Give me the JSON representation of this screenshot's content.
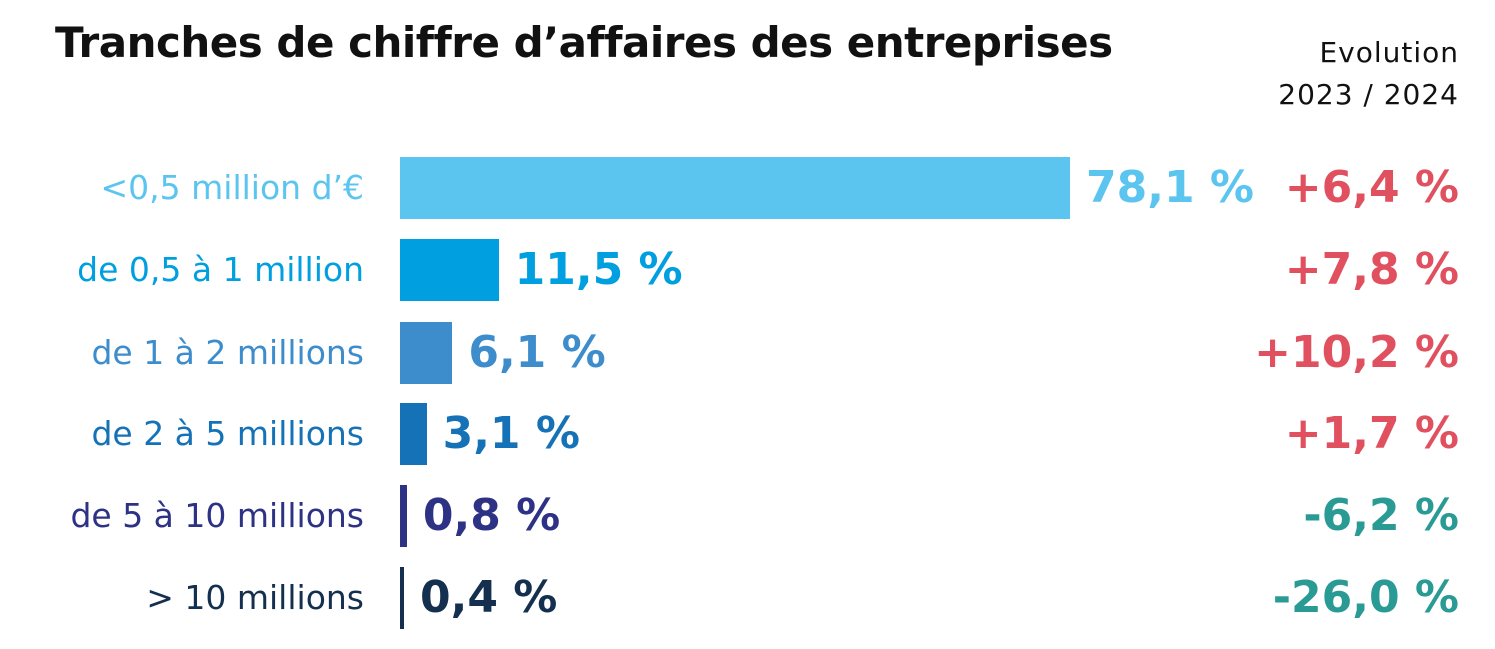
{
  "chart_data": {
    "type": "bar",
    "orientation": "horizontal",
    "title": "Tranches de chiffre d’affaires des entreprises",
    "evolution_header": [
      "Evolution",
      "2023 / 2024"
    ],
    "categories": [
      "<0,5 million d’€",
      "de 0,5 à 1 million",
      "de 1 à 2 millions",
      "de 2 à 5 millions",
      "de 5 à 10 millions",
      "> 10 millions"
    ],
    "values": [
      78.1,
      11.5,
      6.1,
      3.1,
      0.8,
      0.4
    ],
    "value_labels": [
      "78,1 %",
      "11,5 %",
      "6,1 %",
      "3,1 %",
      "0,8 %",
      "0,4 %"
    ],
    "evolution_values": [
      6.4,
      7.8,
      10.2,
      1.7,
      -6.2,
      -26.0
    ],
    "evolution_labels": [
      "+6,4 %",
      "+7,8 %",
      "+10,2 %",
      "+1,7 %",
      "-6,2 %",
      "-26,0 %"
    ],
    "bar_colors": [
      "#5bc5f0",
      "#009fe0",
      "#3d8dcc",
      "#1672b6",
      "#2e3284",
      "#14304e"
    ],
    "positive_color": "#e0505f",
    "negative_color": "#2a9a94",
    "xlim": [
      0,
      78.1
    ],
    "grid": false,
    "legend": "none"
  }
}
